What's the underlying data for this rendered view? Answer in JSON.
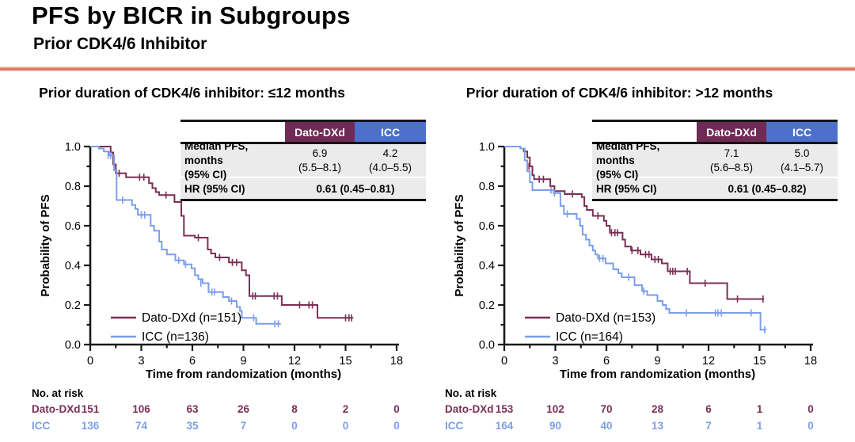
{
  "header": {
    "title": "PFS by BICR in Subgroups",
    "subtitle": "Prior CDK4/6 Inhibitor"
  },
  "colors": {
    "dato": "#7B2F55",
    "icc": "#7C9EE8",
    "dato_header_bg": "#6F2A56",
    "icc_header_bg": "#4C70CB",
    "table_row_bg": "#EBEBEB",
    "divider": "#DB7D62",
    "axis": "#1A1A1A"
  },
  "chart_data": [
    {
      "type": "line",
      "subtype": "kaplan-meier-step",
      "title": "Prior duration of CDK4/6 inhibitor: ≤12 months",
      "xlabel": "Time from randomization (months)",
      "ylabel": "Probability of PFS",
      "xlim": [
        0,
        18
      ],
      "ylim": [
        0.0,
        1.0
      ],
      "x_ticks": [
        "0",
        "3",
        "6",
        "9",
        "12",
        "15",
        "18"
      ],
      "y_ticks": [
        "0.0",
        "0.2",
        "0.4",
        "0.6",
        "0.8",
        "1.0"
      ],
      "legend_position": "lower-left",
      "stats": {
        "columns": [
          "Dato-DXd",
          "ICC"
        ],
        "median_label": [
          "Median PFS, months",
          "(95% CI)"
        ],
        "median_values": [
          [
            "6.9",
            "(5.5–8.1)"
          ],
          [
            "4.2",
            "(4.0–5.5)"
          ]
        ],
        "hr_label": "HR (95% CI)",
        "hr_value": "0.61 (0.45–0.81)"
      },
      "series": [
        {
          "name": "Dato-DXd (n=151)",
          "color_key": "dato",
          "steps": [
            [
              0,
              1.0
            ],
            [
              1.2,
              0.97
            ],
            [
              1.35,
              0.91
            ],
            [
              1.5,
              0.865
            ],
            [
              2.1,
              0.845
            ],
            [
              3.45,
              0.815
            ],
            [
              3.65,
              0.79
            ],
            [
              3.85,
              0.77
            ],
            [
              4.05,
              0.755
            ],
            [
              4.95,
              0.72
            ],
            [
              5.35,
              0.65
            ],
            [
              5.5,
              0.55
            ],
            [
              6.15,
              0.54
            ],
            [
              6.9,
              0.48
            ],
            [
              7.1,
              0.46
            ],
            [
              7.35,
              0.44
            ],
            [
              8.15,
              0.415
            ],
            [
              8.9,
              0.375
            ],
            [
              9.15,
              0.35
            ],
            [
              9.35,
              0.245
            ],
            [
              11.25,
              0.2
            ],
            [
              13.35,
              0.135
            ],
            [
              15.45,
              0.135
            ]
          ],
          "censors": [
            [
              1.7,
              0.865
            ],
            [
              2.9,
              0.845
            ],
            [
              3.15,
              0.845
            ],
            [
              4.45,
              0.755
            ],
            [
              6.35,
              0.54
            ],
            [
              7.6,
              0.44
            ],
            [
              8.35,
              0.415
            ],
            [
              8.6,
              0.415
            ],
            [
              9.55,
              0.245
            ],
            [
              9.7,
              0.245
            ],
            [
              10.8,
              0.245
            ],
            [
              11.0,
              0.245
            ],
            [
              12.3,
              0.2
            ],
            [
              12.85,
              0.2
            ],
            [
              13.05,
              0.2
            ],
            [
              15.0,
              0.135
            ],
            [
              15.2,
              0.135
            ],
            [
              15.35,
              0.135
            ]
          ]
        },
        {
          "name": "ICC (n=136)",
          "color_key": "icc",
          "steps": [
            [
              0,
              1.0
            ],
            [
              0.5,
              0.99
            ],
            [
              0.8,
              0.975
            ],
            [
              1.1,
              0.955
            ],
            [
              1.4,
              0.88
            ],
            [
              1.55,
              0.73
            ],
            [
              2.45,
              0.705
            ],
            [
              2.65,
              0.685
            ],
            [
              2.8,
              0.655
            ],
            [
              3.55,
              0.6
            ],
            [
              3.75,
              0.575
            ],
            [
              4.05,
              0.52
            ],
            [
              4.2,
              0.48
            ],
            [
              4.5,
              0.455
            ],
            [
              5.0,
              0.425
            ],
            [
              5.5,
              0.405
            ],
            [
              5.95,
              0.385
            ],
            [
              6.15,
              0.35
            ],
            [
              6.35,
              0.33
            ],
            [
              6.6,
              0.31
            ],
            [
              6.95,
              0.265
            ],
            [
              7.8,
              0.24
            ],
            [
              8.15,
              0.22
            ],
            [
              8.6,
              0.19
            ],
            [
              8.8,
              0.17
            ],
            [
              8.9,
              0.135
            ],
            [
              9.75,
              0.105
            ],
            [
              11.2,
              0.105
            ]
          ],
          "censors": [
            [
              1.05,
              0.955
            ],
            [
              1.2,
              0.955
            ],
            [
              1.9,
              0.73
            ],
            [
              3.0,
              0.655
            ],
            [
              3.2,
              0.655
            ],
            [
              5.2,
              0.425
            ],
            [
              5.6,
              0.405
            ],
            [
              6.5,
              0.31
            ],
            [
              7.15,
              0.265
            ],
            [
              7.3,
              0.265
            ],
            [
              8.3,
              0.22
            ],
            [
              9.6,
              0.135
            ],
            [
              10.85,
              0.105
            ],
            [
              11.05,
              0.105
            ]
          ]
        }
      ],
      "risk_table": {
        "heading": "No. at risk",
        "rows": [
          {
            "label": "Dato-DXd",
            "color_key": "dato",
            "values": [
              "151",
              "106",
              "63",
              "26",
              "8",
              "2",
              "0"
            ]
          },
          {
            "label": "ICC",
            "color_key": "icc",
            "values": [
              "136",
              "74",
              "35",
              "7",
              "0",
              "0",
              "0"
            ]
          }
        ]
      }
    },
    {
      "type": "line",
      "subtype": "kaplan-meier-step",
      "title": "Prior duration of CDK4/6 inhibitor: >12 months",
      "xlabel": "Time from randomization (months)",
      "ylabel": "Probability of PFS",
      "xlim": [
        0,
        18
      ],
      "ylim": [
        0.0,
        1.0
      ],
      "x_ticks": [
        "0",
        "3",
        "6",
        "9",
        "12",
        "15",
        "18"
      ],
      "y_ticks": [
        "0.0",
        "0.2",
        "0.4",
        "0.6",
        "0.8",
        "1.0"
      ],
      "legend_position": "lower-left",
      "stats": {
        "columns": [
          "Dato-DXd",
          "ICC"
        ],
        "median_label": [
          "Median PFS, months",
          "(95% CI)"
        ],
        "median_values": [
          [
            "7.1",
            "(5.6–8.5)"
          ],
          [
            "5.0",
            "(4.1–5.7)"
          ]
        ],
        "hr_label": "HR (95% CI)",
        "hr_value": "0.61 (0.45–0.82)"
      },
      "series": [
        {
          "name": "Dato-DXd (n=153)",
          "color_key": "dato",
          "steps": [
            [
              0,
              1.0
            ],
            [
              0.95,
              0.99
            ],
            [
              1.15,
              0.975
            ],
            [
              1.35,
              0.945
            ],
            [
              1.5,
              0.9
            ],
            [
              1.65,
              0.855
            ],
            [
              1.75,
              0.835
            ],
            [
              2.7,
              0.8
            ],
            [
              2.95,
              0.775
            ],
            [
              3.55,
              0.76
            ],
            [
              4.55,
              0.745
            ],
            [
              4.7,
              0.7
            ],
            [
              4.85,
              0.68
            ],
            [
              5.2,
              0.65
            ],
            [
              5.85,
              0.625
            ],
            [
              6.0,
              0.6
            ],
            [
              6.2,
              0.565
            ],
            [
              6.95,
              0.53
            ],
            [
              7.1,
              0.495
            ],
            [
              7.45,
              0.475
            ],
            [
              8.0,
              0.455
            ],
            [
              8.65,
              0.43
            ],
            [
              9.25,
              0.41
            ],
            [
              9.6,
              0.37
            ],
            [
              10.9,
              0.31
            ],
            [
              13.1,
              0.23
            ],
            [
              15.25,
              0.23
            ]
          ],
          "censors": [
            [
              1.45,
              0.9
            ],
            [
              2.05,
              0.835
            ],
            [
              2.3,
              0.835
            ],
            [
              4.0,
              0.76
            ],
            [
              5.5,
              0.65
            ],
            [
              6.3,
              0.565
            ],
            [
              6.5,
              0.565
            ],
            [
              6.65,
              0.565
            ],
            [
              7.5,
              0.475
            ],
            [
              7.85,
              0.475
            ],
            [
              8.3,
              0.455
            ],
            [
              8.5,
              0.455
            ],
            [
              8.85,
              0.43
            ],
            [
              9.05,
              0.43
            ],
            [
              9.75,
              0.37
            ],
            [
              9.9,
              0.37
            ],
            [
              10.05,
              0.37
            ],
            [
              10.75,
              0.37
            ],
            [
              11.8,
              0.31
            ],
            [
              13.7,
              0.23
            ],
            [
              15.2,
              0.23
            ]
          ]
        },
        {
          "name": "ICC (n=164)",
          "color_key": "icc",
          "steps": [
            [
              0,
              1.0
            ],
            [
              0.95,
              0.99
            ],
            [
              1.2,
              0.93
            ],
            [
              1.35,
              0.875
            ],
            [
              1.5,
              0.82
            ],
            [
              1.65,
              0.78
            ],
            [
              2.9,
              0.765
            ],
            [
              3.3,
              0.7
            ],
            [
              3.5,
              0.66
            ],
            [
              4.25,
              0.635
            ],
            [
              4.45,
              0.6
            ],
            [
              4.6,
              0.555
            ],
            [
              4.8,
              0.53
            ],
            [
              5.0,
              0.5
            ],
            [
              5.2,
              0.475
            ],
            [
              5.35,
              0.455
            ],
            [
              5.5,
              0.435
            ],
            [
              5.95,
              0.41
            ],
            [
              6.4,
              0.38
            ],
            [
              6.7,
              0.36
            ],
            [
              6.9,
              0.34
            ],
            [
              7.65,
              0.3
            ],
            [
              8.1,
              0.27
            ],
            [
              8.4,
              0.25
            ],
            [
              9.0,
              0.22
            ],
            [
              9.3,
              0.2
            ],
            [
              9.5,
              0.18
            ],
            [
              9.7,
              0.16
            ],
            [
              15.05,
              0.075
            ],
            [
              15.4,
              0.075
            ]
          ],
          "censors": [
            [
              2.75,
              0.78
            ],
            [
              2.95,
              0.765
            ],
            [
              3.7,
              0.66
            ],
            [
              5.6,
              0.435
            ],
            [
              5.8,
              0.435
            ],
            [
              7.3,
              0.34
            ],
            [
              8.2,
              0.27
            ],
            [
              10.7,
              0.16
            ],
            [
              12.4,
              0.16
            ],
            [
              12.55,
              0.16
            ],
            [
              12.75,
              0.16
            ],
            [
              14.5,
              0.16
            ],
            [
              15.3,
              0.075
            ]
          ]
        }
      ],
      "risk_table": {
        "heading": "No. at risk",
        "rows": [
          {
            "label": "Dato-DXd",
            "color_key": "dato",
            "values": [
              "153",
              "102",
              "70",
              "28",
              "6",
              "1",
              "0"
            ]
          },
          {
            "label": "ICC",
            "color_key": "icc",
            "values": [
              "164",
              "90",
              "40",
              "13",
              "7",
              "1",
              "0"
            ]
          }
        ]
      }
    }
  ]
}
